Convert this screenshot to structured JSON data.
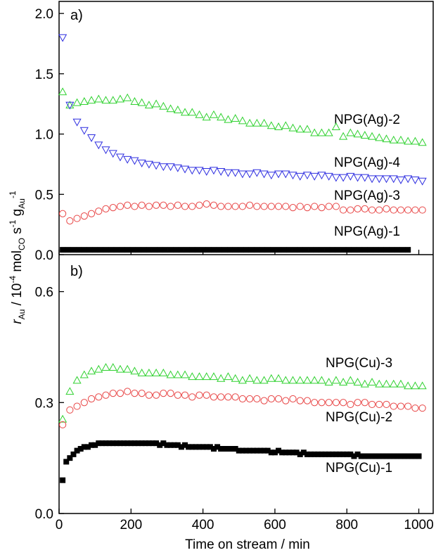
{
  "chart_data": [
    {
      "type": "scatter",
      "panel_label": "a)",
      "xlim": [
        0,
        1040
      ],
      "ylim": [
        0,
        2.1
      ],
      "yticks": [
        0.0,
        0.5,
        1.0,
        1.5,
        2.0
      ],
      "ytick_labels": [
        "0.0",
        "0.5",
        "1.0",
        "1.5",
        "2.0"
      ],
      "series": [
        {
          "name": "NPG(Ag)-2",
          "marker": "triangle-up",
          "color": "#2fd12f",
          "x": [
            10,
            30,
            50,
            70,
            90,
            110,
            130,
            150,
            170,
            190,
            210,
            230,
            250,
            270,
            290,
            310,
            330,
            350,
            370,
            390,
            410,
            430,
            450,
            470,
            490,
            510,
            530,
            550,
            570,
            590,
            610,
            630,
            650,
            670,
            690,
            710,
            730,
            750,
            770,
            790,
            810,
            830,
            850,
            870,
            890,
            910,
            930,
            950,
            970,
            990,
            1010
          ],
          "y": [
            1.35,
            1.24,
            1.26,
            1.27,
            1.28,
            1.29,
            1.28,
            1.28,
            1.29,
            1.3,
            1.27,
            1.26,
            1.24,
            1.25,
            1.23,
            1.21,
            1.2,
            1.18,
            1.18,
            1.16,
            1.14,
            1.16,
            1.14,
            1.12,
            1.13,
            1.11,
            1.09,
            1.09,
            1.09,
            1.07,
            1.06,
            1.07,
            1.05,
            1.04,
            1.04,
            1.01,
            1.01,
            1.01,
            1.06,
            0.98,
            1.01,
            1.0,
            0.99,
            0.98,
            0.97,
            0.96,
            0.95,
            0.95,
            0.94,
            0.94,
            0.93
          ]
        },
        {
          "name": "NPG(Ag)-4",
          "marker": "triangle-down",
          "color": "#2e2ee0",
          "x": [
            10,
            30,
            50,
            70,
            90,
            110,
            130,
            150,
            170,
            190,
            210,
            230,
            250,
            270,
            290,
            310,
            330,
            350,
            370,
            390,
            410,
            430,
            450,
            470,
            490,
            510,
            530,
            550,
            570,
            590,
            610,
            630,
            650,
            670,
            690,
            710,
            730,
            750,
            770,
            790,
            810,
            830,
            850,
            870,
            890,
            910,
            930,
            950,
            970,
            990,
            1010
          ],
          "y": [
            1.8,
            1.24,
            1.1,
            1.03,
            0.97,
            0.91,
            0.87,
            0.84,
            0.81,
            0.79,
            0.78,
            0.76,
            0.75,
            0.74,
            0.73,
            0.73,
            0.72,
            0.71,
            0.7,
            0.7,
            0.69,
            0.7,
            0.69,
            0.68,
            0.68,
            0.67,
            0.67,
            0.68,
            0.67,
            0.66,
            0.67,
            0.67,
            0.66,
            0.65,
            0.66,
            0.65,
            0.66,
            0.65,
            0.64,
            0.64,
            0.65,
            0.64,
            0.64,
            0.63,
            0.63,
            0.63,
            0.63,
            0.62,
            0.63,
            0.62,
            0.61
          ]
        },
        {
          "name": "NPG(Ag)-3",
          "marker": "circle",
          "color": "#e84545",
          "x": [
            10,
            30,
            50,
            70,
            90,
            110,
            130,
            150,
            170,
            190,
            210,
            230,
            250,
            270,
            290,
            310,
            330,
            350,
            370,
            390,
            410,
            430,
            450,
            470,
            490,
            510,
            530,
            550,
            570,
            590,
            610,
            630,
            650,
            670,
            690,
            710,
            730,
            750,
            770,
            790,
            810,
            830,
            850,
            870,
            890,
            910,
            930,
            950,
            970,
            990,
            1010
          ],
          "y": [
            0.34,
            0.28,
            0.3,
            0.32,
            0.34,
            0.36,
            0.38,
            0.39,
            0.4,
            0.41,
            0.4,
            0.41,
            0.4,
            0.41,
            0.41,
            0.4,
            0.41,
            0.4,
            0.4,
            0.41,
            0.42,
            0.41,
            0.4,
            0.4,
            0.4,
            0.4,
            0.41,
            0.4,
            0.4,
            0.4,
            0.4,
            0.4,
            0.39,
            0.4,
            0.39,
            0.4,
            0.39,
            0.4,
            0.4,
            0.37,
            0.37,
            0.38,
            0.38,
            0.37,
            0.37,
            0.38,
            0.37,
            0.37,
            0.37,
            0.37,
            0.37
          ]
        },
        {
          "name": "NPG(Ag)-1",
          "marker": "square",
          "color": "#000000",
          "x": [
            10,
            25,
            40,
            55,
            70,
            85,
            100,
            115,
            130,
            145,
            160,
            175,
            190,
            205,
            220,
            235,
            250,
            265,
            280,
            295,
            310,
            325,
            340,
            355,
            370,
            385,
            400,
            415,
            430,
            445,
            460,
            475,
            490,
            505,
            520,
            535,
            550,
            565,
            580,
            595,
            610,
            625,
            640,
            655,
            670,
            685,
            700,
            715,
            730,
            745,
            760,
            775,
            790,
            805,
            820,
            835,
            850,
            865,
            880,
            895,
            910,
            925,
            940,
            955,
            970
          ],
          "y": [
            0.04,
            0.04,
            0.04,
            0.04,
            0.04,
            0.04,
            0.04,
            0.04,
            0.04,
            0.04,
            0.04,
            0.04,
            0.04,
            0.04,
            0.04,
            0.04,
            0.04,
            0.04,
            0.04,
            0.04,
            0.04,
            0.04,
            0.04,
            0.04,
            0.04,
            0.04,
            0.04,
            0.04,
            0.04,
            0.04,
            0.04,
            0.04,
            0.04,
            0.04,
            0.04,
            0.04,
            0.04,
            0.04,
            0.04,
            0.04,
            0.04,
            0.04,
            0.04,
            0.04,
            0.04,
            0.04,
            0.04,
            0.04,
            0.04,
            0.04,
            0.04,
            0.04,
            0.04,
            0.04,
            0.04,
            0.04,
            0.04,
            0.04,
            0.04,
            0.04,
            0.04,
            0.04,
            0.04,
            0.04,
            0.04
          ]
        }
      ]
    },
    {
      "type": "scatter",
      "panel_label": "b)",
      "xlim": [
        0,
        1040
      ],
      "ylim": [
        0,
        0.7
      ],
      "yticks": [
        0.0,
        0.3,
        0.6
      ],
      "ytick_labels": [
        "0.0",
        "0.3",
        "0.6"
      ],
      "series": [
        {
          "name": "NPG(Cu)-3",
          "marker": "triangle-up",
          "color": "#2fd12f",
          "x": [
            10,
            30,
            50,
            70,
            90,
            110,
            130,
            150,
            170,
            190,
            210,
            230,
            250,
            270,
            290,
            310,
            330,
            350,
            370,
            390,
            410,
            430,
            450,
            470,
            490,
            510,
            530,
            550,
            570,
            590,
            610,
            630,
            650,
            670,
            690,
            710,
            730,
            750,
            770,
            790,
            810,
            830,
            850,
            870,
            890,
            910,
            930,
            950,
            970,
            990,
            1010
          ],
          "y": [
            0.255,
            0.33,
            0.36,
            0.375,
            0.385,
            0.39,
            0.395,
            0.395,
            0.39,
            0.39,
            0.385,
            0.38,
            0.38,
            0.38,
            0.38,
            0.375,
            0.375,
            0.375,
            0.37,
            0.37,
            0.37,
            0.37,
            0.365,
            0.37,
            0.365,
            0.36,
            0.365,
            0.36,
            0.36,
            0.365,
            0.365,
            0.36,
            0.36,
            0.36,
            0.36,
            0.36,
            0.36,
            0.355,
            0.36,
            0.355,
            0.36,
            0.355,
            0.35,
            0.355,
            0.35,
            0.35,
            0.35,
            0.35,
            0.345,
            0.345,
            0.345
          ]
        },
        {
          "name": "NPG(Cu)-2",
          "marker": "circle",
          "color": "#e84545",
          "x": [
            10,
            30,
            50,
            70,
            90,
            110,
            130,
            150,
            170,
            190,
            210,
            230,
            250,
            270,
            290,
            310,
            330,
            350,
            370,
            390,
            410,
            430,
            450,
            470,
            490,
            510,
            530,
            550,
            570,
            590,
            610,
            630,
            650,
            670,
            690,
            710,
            730,
            750,
            770,
            790,
            810,
            830,
            850,
            870,
            890,
            910,
            930,
            950,
            970,
            990,
            1010
          ],
          "y": [
            0.24,
            0.28,
            0.29,
            0.3,
            0.31,
            0.315,
            0.32,
            0.325,
            0.325,
            0.33,
            0.325,
            0.325,
            0.32,
            0.32,
            0.325,
            0.325,
            0.32,
            0.32,
            0.315,
            0.32,
            0.32,
            0.315,
            0.315,
            0.315,
            0.315,
            0.31,
            0.31,
            0.31,
            0.305,
            0.31,
            0.31,
            0.305,
            0.31,
            0.305,
            0.305,
            0.3,
            0.3,
            0.3,
            0.3,
            0.3,
            0.295,
            0.3,
            0.3,
            0.295,
            0.295,
            0.295,
            0.29,
            0.29,
            0.29,
            0.285,
            0.285
          ]
        },
        {
          "name": "NPG(Cu)-1",
          "marker": "square",
          "color": "#000000",
          "x": [
            10,
            20,
            30,
            40,
            50,
            60,
            70,
            80,
            90,
            100,
            110,
            120,
            130,
            140,
            150,
            160,
            170,
            180,
            190,
            200,
            210,
            220,
            230,
            240,
            250,
            260,
            270,
            280,
            290,
            300,
            310,
            320,
            330,
            340,
            350,
            360,
            370,
            380,
            390,
            400,
            410,
            420,
            430,
            440,
            450,
            460,
            470,
            480,
            490,
            500,
            510,
            520,
            530,
            540,
            550,
            560,
            570,
            580,
            590,
            600,
            610,
            620,
            630,
            640,
            650,
            660,
            670,
            680,
            690,
            700,
            710,
            720,
            730,
            740,
            750,
            760,
            770,
            780,
            790,
            800,
            810,
            820,
            830,
            840,
            850,
            860,
            870,
            880,
            890,
            900,
            910,
            920,
            930,
            940,
            950,
            960,
            970,
            980,
            990,
            1000
          ],
          "y": [
            0.09,
            0.14,
            0.15,
            0.16,
            0.17,
            0.175,
            0.18,
            0.18,
            0.185,
            0.185,
            0.19,
            0.19,
            0.19,
            0.19,
            0.19,
            0.19,
            0.19,
            0.19,
            0.19,
            0.19,
            0.19,
            0.19,
            0.19,
            0.19,
            0.19,
            0.19,
            0.19,
            0.185,
            0.19,
            0.185,
            0.185,
            0.185,
            0.185,
            0.18,
            0.185,
            0.18,
            0.18,
            0.18,
            0.18,
            0.18,
            0.18,
            0.18,
            0.175,
            0.18,
            0.175,
            0.175,
            0.175,
            0.175,
            0.175,
            0.17,
            0.17,
            0.17,
            0.17,
            0.17,
            0.17,
            0.17,
            0.17,
            0.17,
            0.165,
            0.165,
            0.17,
            0.165,
            0.165,
            0.165,
            0.165,
            0.165,
            0.16,
            0.165,
            0.16,
            0.16,
            0.16,
            0.16,
            0.16,
            0.16,
            0.16,
            0.16,
            0.16,
            0.16,
            0.16,
            0.16,
            0.16,
            0.155,
            0.16,
            0.155,
            0.155,
            0.155,
            0.155,
            0.155,
            0.155,
            0.155,
            0.155,
            0.155,
            0.155,
            0.155,
            0.155,
            0.155,
            0.155,
            0.155,
            0.155,
            0.155
          ]
        }
      ]
    }
  ],
  "x_axis": {
    "ticks": [
      0,
      200,
      400,
      600,
      800,
      1000
    ],
    "tick_labels": [
      "0",
      "200",
      "400",
      "600",
      "800",
      "1000"
    ],
    "title": "Time on stream / min"
  },
  "y_axis_title": {
    "r": "r",
    "r_sub": "Au",
    "slash": " / 10",
    "exp1": "-4",
    "mol": " mol",
    "mol_sub": "CO",
    "s": " s",
    "exp2": "-1",
    "g": " g",
    "g_sub": "Au",
    "exp3": "-1"
  }
}
